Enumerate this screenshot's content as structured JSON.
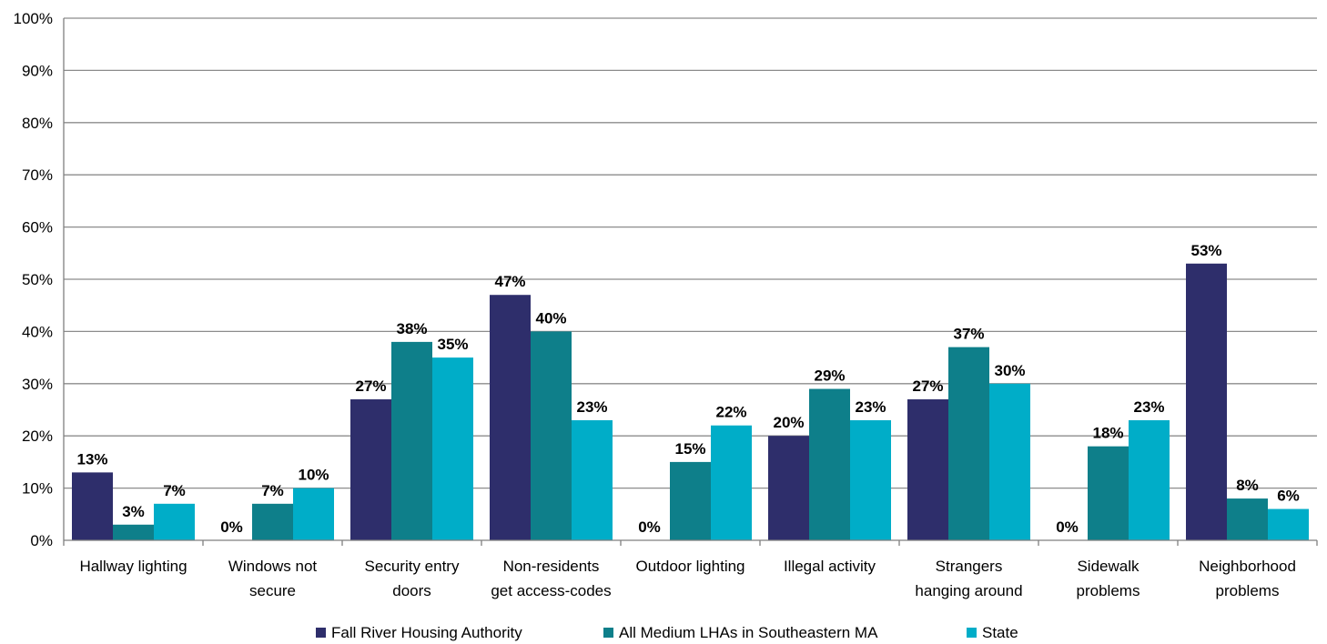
{
  "chart_data": {
    "type": "bar",
    "categories": [
      [
        "Hallway lighting"
      ],
      [
        "Windows not",
        "secure"
      ],
      [
        "Security entry",
        "doors"
      ],
      [
        "Non-residents",
        "get access-codes"
      ],
      [
        "Outdoor lighting"
      ],
      [
        "Illegal activity"
      ],
      [
        "Strangers",
        "hanging around"
      ],
      [
        "Sidewalk",
        "problems"
      ],
      [
        "Neighborhood",
        "problems"
      ]
    ],
    "series": [
      {
        "name": "Fall River Housing Authority",
        "color": "#2e2e6b",
        "values": [
          13,
          0,
          27,
          47,
          0,
          20,
          27,
          0,
          53
        ]
      },
      {
        "name": "All Medium LHAs in Southeastern MA",
        "color": "#0e7f8a",
        "values": [
          3,
          7,
          38,
          40,
          15,
          29,
          37,
          18,
          8
        ]
      },
      {
        "name": "State",
        "color": "#00adc8",
        "values": [
          7,
          10,
          35,
          23,
          22,
          23,
          30,
          23,
          6
        ]
      }
    ],
    "y_ticks": [
      "0%",
      "10%",
      "20%",
      "30%",
      "40%",
      "50%",
      "60%",
      "70%",
      "80%",
      "90%",
      "100%"
    ],
    "ylim": [
      0,
      100
    ],
    "value_suffix": "%",
    "grid": true,
    "legend_position": "bottom-center"
  }
}
